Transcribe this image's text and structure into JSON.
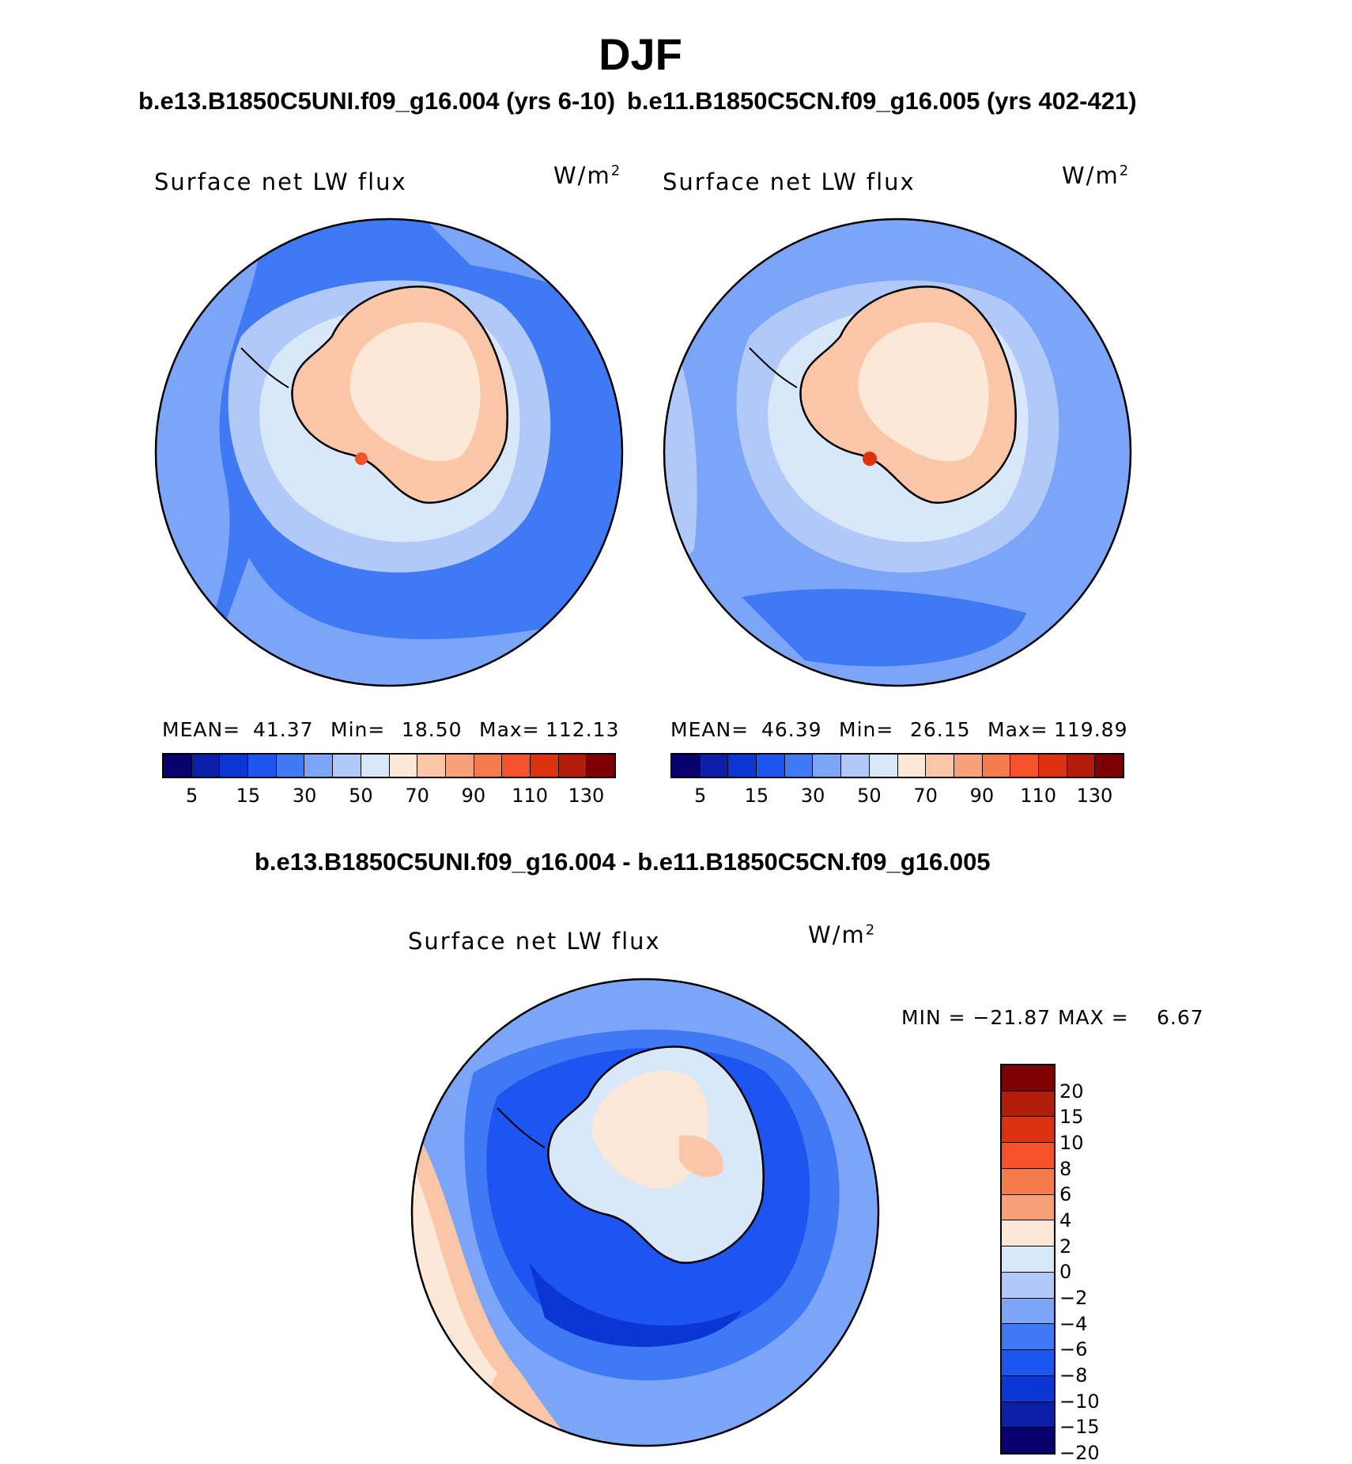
{
  "title": "DJF",
  "case_a": "b.e13.B1850C5UNI.f09_g16.004 (yrs 6-10)",
  "case_b": "b.e11.B1850C5CN.f09_g16.005 (yrs 402-421)",
  "diff_title": "b.e13.B1850C5UNI.f09_g16.004 - b.e11.B1850C5CN.f09_g16.005",
  "panels": [
    {
      "variable": "Surface net LW flux",
      "units": "W/m",
      "units_exp": "2",
      "mean_label": "MEAN=",
      "mean": "41.37",
      "min_label": "Min=",
      "min": "18.50",
      "max_label": "Max=",
      "max": "112.13"
    },
    {
      "variable": "Surface net LW flux",
      "units": "W/m",
      "units_exp": "2",
      "mean_label": "MEAN=",
      "mean": "46.39",
      "min_label": "Min=",
      "min": "26.15",
      "max_label": "Max=",
      "max": "119.89"
    }
  ],
  "diff_panel": {
    "variable": "Surface net LW flux",
    "units": "W/m",
    "units_exp": "2",
    "minmax": "MIN = −21.87 MAX =",
    "max": "6.67"
  },
  "colorbar_h": {
    "colors": [
      "#08006e",
      "#0b1fa8",
      "#0b36d3",
      "#1e55f0",
      "#3f79f3",
      "#7da5f7",
      "#b0c9f8",
      "#d8e7fa",
      "#fde7d6",
      "#fbc6a8",
      "#f7a07a",
      "#f57b4c",
      "#f4522a",
      "#dd3212",
      "#b31b0a",
      "#7f0000"
    ],
    "labels": [
      "5",
      "15",
      "30",
      "50",
      "70",
      "90",
      "110",
      "130"
    ]
  },
  "colorbar_v": {
    "colors": [
      "#7f0000",
      "#b31b0a",
      "#dd3212",
      "#f4522a",
      "#f57b4c",
      "#f7a07a",
      "#fde7d6",
      "#d8e7fa",
      "#b0c9f8",
      "#7da5f7",
      "#3f79f3",
      "#1e55f0",
      "#0b36d3",
      "#0b1fa8",
      "#08006e"
    ],
    "labels": [
      "20",
      "15",
      "10",
      "8",
      "6",
      "4",
      "2",
      "0",
      "−2",
      "−4",
      "−6",
      "−8",
      "−10",
      "−15",
      "−20"
    ]
  }
}
